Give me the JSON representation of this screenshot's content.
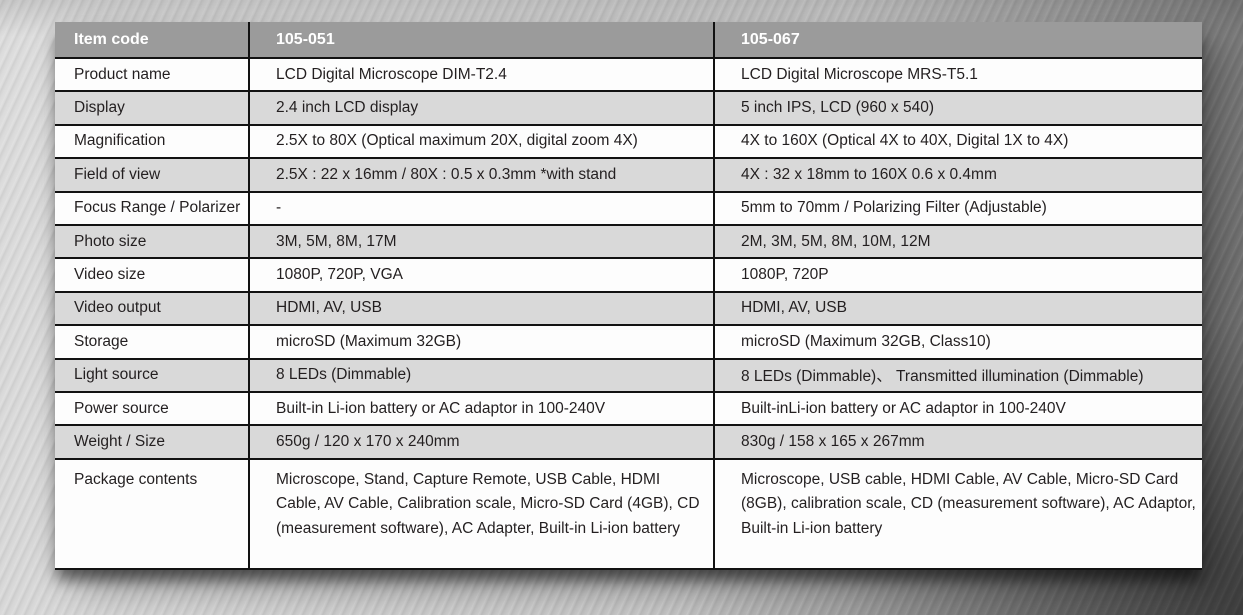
{
  "colors": {
    "header_bg": "#9b9b9b",
    "header_text": "#ffffff",
    "row_white": "#fdfdfd",
    "row_gray": "#d9d9d9",
    "grid_line": "#121212",
    "text": "#231f20"
  },
  "table": {
    "header": {
      "label": "Item code",
      "product1": "105-051",
      "product2": "105-067"
    },
    "rows": [
      {
        "label": "Product name",
        "col1": "LCD Digital Microscope DIM-T2.4",
        "col2": "LCD Digital Microscope MRS-T5.1"
      },
      {
        "label": "Display",
        "col1": "2.4 inch LCD display",
        "col2": "5 inch IPS, LCD (960 x 540)"
      },
      {
        "label": "Magnification",
        "col1": "2.5X to 80X (Optical maximum 20X, digital zoom 4X)",
        "col2": "4X to 160X (Optical 4X to 40X, Digital 1X to 4X)"
      },
      {
        "label": "Field of view",
        "col1": "2.5X : 22 x 16mm / 80X : 0.5 x 0.3mm *with stand",
        "col2": "4X : 32 x 18mm to 160X 0.6 x 0.4mm"
      },
      {
        "label": "Focus Range / Polarizer",
        "col1": "-",
        "col2": "5mm to 70mm / Polarizing Filter (Adjustable)"
      },
      {
        "label": "Photo size",
        "col1": "3M, 5M, 8M, 17M",
        "col2": "2M, 3M, 5M, 8M, 10M, 12M"
      },
      {
        "label": "Video size",
        "col1": "1080P, 720P, VGA",
        "col2": "1080P, 720P"
      },
      {
        "label": "Video output",
        "col1": "HDMI, AV, USB",
        "col2": "HDMI, AV, USB"
      },
      {
        "label": "Storage",
        "col1": "microSD (Maximum 32GB)",
        "col2": "microSD (Maximum 32GB, Class10)"
      },
      {
        "label": "Light source",
        "col1": "8 LEDs (Dimmable)",
        "col2": "8 LEDs (Dimmable)、 Transmitted illumination (Dimmable)"
      },
      {
        "label": "Power source",
        "col1": "Built-in Li-ion battery or AC adaptor in 100-240V",
        "col2": "Built-inLi-ion battery or AC adaptor in 100-240V"
      },
      {
        "label": "Weight / Size",
        "col1": "650g / 120 x 170 x 240mm",
        "col2": "830g / 158 x 165 x 267mm"
      },
      {
        "label": "Package contents",
        "col1": "Microscope, Stand, Capture Remote, USB Cable, HDMI Cable, AV Cable, Calibration scale, Micro-SD Card (4GB), CD (measurement software), AC Adapter, Built-in Li-ion battery",
        "col2": "Microscope, USB cable, HDMI Cable, AV Cable, Micro-SD Card (8GB), calibration scale, CD (measurement software), AC Adaptor, Built-in Li-ion battery"
      }
    ]
  }
}
